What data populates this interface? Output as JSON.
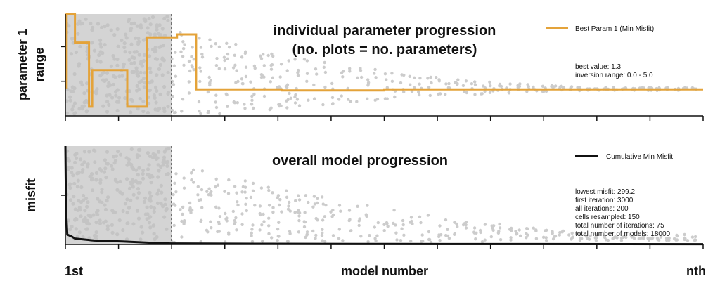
{
  "chart_data": [
    {
      "type": "line",
      "panel": "parameter",
      "title": "individual parameter progression",
      "subtitle": "(no. plots = no. parameters)",
      "ylabel_line1": "parameter 1",
      "ylabel_line2": "range",
      "xlabel": "",
      "xlim": [
        0,
        1
      ],
      "ylim": [
        0,
        1
      ],
      "grid": false,
      "legend_position": "top-right",
      "initial_sampling_end": 0.166,
      "series": [
        {
          "name": "Best Param 1 (Min Misfit)",
          "color": "#e4a33a",
          "x": [
            0,
            0.002,
            0.002,
            0.015,
            0.015,
            0.037,
            0.037,
            0.042,
            0.042,
            0.097,
            0.097,
            0.128,
            0.128,
            0.166,
            0.166,
            0.175,
            0.175,
            0.205,
            0.205,
            0.34,
            0.34,
            0.5,
            0.5,
            0.7,
            0.7,
            1.0
          ],
          "y": [
            0.28,
            0.28,
            1.0,
            1.0,
            0.72,
            0.72,
            0.09,
            0.09,
            0.45,
            0.45,
            0.09,
            0.09,
            0.77,
            0.77,
            0.77,
            0.77,
            0.8,
            0.8,
            0.26,
            0.26,
            0.25,
            0.25,
            0.26,
            0.26,
            0.26,
            0.26
          ]
        }
      ],
      "annotations": [
        "best value: 1.3",
        "inversion range: 0.0 - 5.0"
      ]
    },
    {
      "type": "line",
      "panel": "misfit",
      "title": "overall model progression",
      "ylabel": "misfit",
      "xlabel": "model number",
      "x_tick_first": "1st",
      "x_tick_last": "nth",
      "xlim": [
        0,
        1
      ],
      "ylim": [
        0,
        1
      ],
      "grid": false,
      "legend_position": "top-right",
      "initial_sampling_end": 0.166,
      "series": [
        {
          "name": "Cumulative Min Misfit",
          "color": "#111111",
          "x": [
            0,
            0.001,
            0.003,
            0.01,
            0.015,
            0.03,
            0.045,
            0.09,
            0.14,
            0.166,
            0.3,
            0.5,
            0.7,
            1.0
          ],
          "y": [
            1.0,
            0.35,
            0.1,
            0.08,
            0.06,
            0.05,
            0.04,
            0.03,
            0.015,
            0.01,
            0.007,
            0.005,
            0.004,
            0.003
          ]
        }
      ],
      "annotations": [
        "lowest misfit: 299.2",
        "first iteration: 3000",
        "all iterations: 200",
        "cells resampled: 150",
        "total number of iterations: 75",
        "total number of models: 18000"
      ]
    }
  ],
  "colors": {
    "scatter": "#cccccc",
    "shade": "#d4d4d4",
    "param": "#e4a33a",
    "misfit": "#111111"
  }
}
